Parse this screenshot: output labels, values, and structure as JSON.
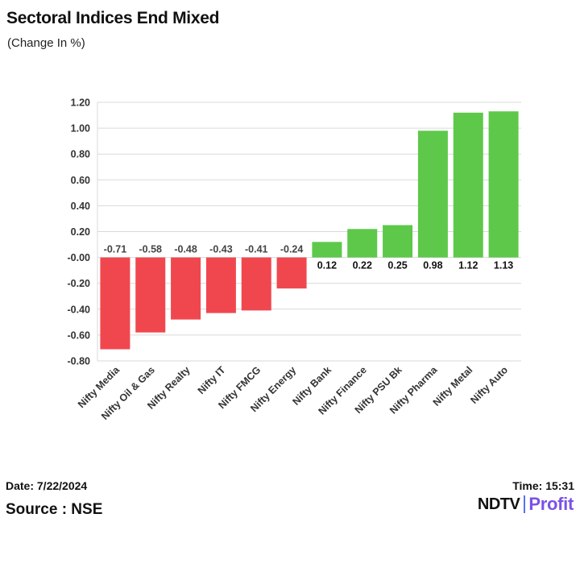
{
  "header": {
    "title": "Sectoral Indices End Mixed",
    "subtitle": "(Change In %)"
  },
  "footer": {
    "date": "Date: 7/22/2024",
    "time": "Time: 15:31",
    "source": "Source : NSE",
    "brand_left": "NDTV",
    "brand_right": "Profit"
  },
  "colors": {
    "positive": "#5ec84a",
    "negative": "#f0474f",
    "grid": "#d9d9d9",
    "axis_text": "#333333",
    "brand_accent": "#7a52e6"
  },
  "chart_data": {
    "type": "bar",
    "title": "Sectoral Indices End Mixed",
    "subtitle": "(Change In %)",
    "xlabel": "",
    "ylabel": "",
    "categories": [
      "Nifty Media",
      "Nifty Oil & Gas",
      "Nifty Realty",
      "Nifty IT",
      "Nifty FMCG",
      "Nifty Energy",
      "Nifty Bank",
      "Nifty Finance",
      "Nifty PSU Bk",
      "Nifty Pharma",
      "Nifty Metal",
      "Nifty Auto"
    ],
    "values": [
      -0.71,
      -0.58,
      -0.48,
      -0.43,
      -0.41,
      -0.24,
      0.12,
      0.22,
      0.25,
      0.98,
      1.12,
      1.13
    ],
    "value_labels": [
      "-0.71",
      "-0.58",
      "-0.48",
      "-0.43",
      "-0.41",
      "-0.24",
      "0.12",
      "0.22",
      "0.25",
      "0.98",
      "1.12",
      "1.13"
    ],
    "ylim": [
      -0.8,
      1.2
    ],
    "yticks": [
      1.2,
      1.0,
      0.8,
      0.6,
      0.4,
      0.2,
      0.0,
      -0.2,
      -0.4,
      -0.6,
      -0.8
    ],
    "ytick_labels": [
      "1.20",
      "1.00",
      "0.80",
      "0.60",
      "0.40",
      "0.20",
      "-0.00",
      "-0.20",
      "-0.40",
      "-0.60",
      "-0.80"
    ],
    "grid": true,
    "legend": "none"
  }
}
